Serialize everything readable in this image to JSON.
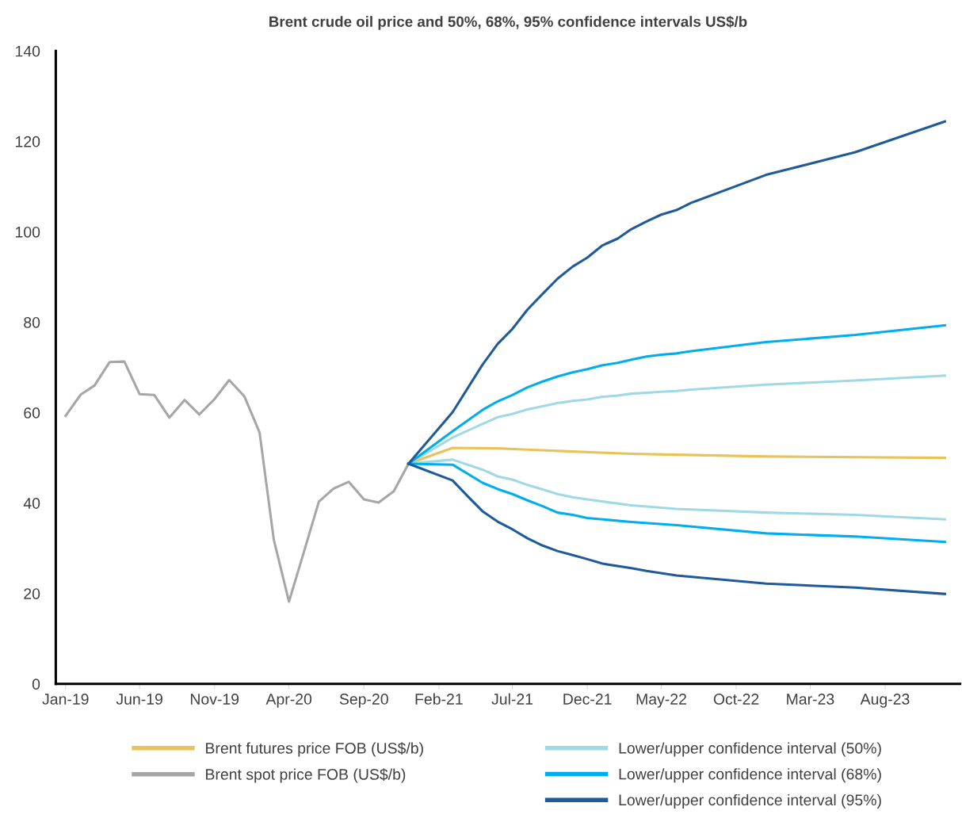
{
  "chart_data": {
    "type": "line",
    "title": "Brent crude oil price and 50%, 68%, 95% confidence intervals US$/b",
    "xlim": [
      "2018-12-12",
      "2024-01-01"
    ],
    "ylim": [
      0,
      140
    ],
    "yticks": [
      0,
      20,
      40,
      60,
      80,
      100,
      120,
      140
    ],
    "xticks": [
      {
        "value": "2019-01",
        "label": "Jan-19"
      },
      {
        "value": "2019-06",
        "label": "Jun-19"
      },
      {
        "value": "2019-11",
        "label": "Nov-19"
      },
      {
        "value": "2020-04",
        "label": "Apr-20"
      },
      {
        "value": "2020-09",
        "label": "Sep-20"
      },
      {
        "value": "2021-02",
        "label": "Feb-21"
      },
      {
        "value": "2021-07",
        "label": "Jul-21"
      },
      {
        "value": "2021-12",
        "label": "Dec-21"
      },
      {
        "value": "2022-05",
        "label": "May-22"
      },
      {
        "value": "2022-10",
        "label": "Oct-22"
      },
      {
        "value": "2023-03",
        "label": "Mar-23"
      },
      {
        "value": "2023-08",
        "label": "Aug-23"
      }
    ],
    "grid": false,
    "legend": "bottom",
    "marker": "none",
    "line_style": "solid",
    "series": [
      {
        "name": "Brent futures price FOB (US$/b)",
        "color": "#e8c35a",
        "x": [
          "2020-12",
          "2021-03",
          "2021-06",
          "2021-08",
          "2021-11",
          "2022-03",
          "2022-06",
          "2022-12",
          "2023-12"
        ],
        "values": [
          48.7,
          52.2,
          52.1,
          51.8,
          51.4,
          50.9,
          50.7,
          50.3,
          50.0
        ]
      },
      {
        "name": "Brent spot price FOB (US$/b)",
        "color": "#a6a6a6",
        "x": [
          "2019-01",
          "2019-02",
          "2019-03",
          "2019-04",
          "2019-05",
          "2019-06",
          "2019-07",
          "2019-08",
          "2019-09",
          "2019-10",
          "2019-11",
          "2019-12",
          "2020-01",
          "2020-02",
          "2020-03",
          "2020-04",
          "2020-05",
          "2020-06",
          "2020-07",
          "2020-08",
          "2020-09",
          "2020-10",
          "2020-11",
          "2020-12"
        ],
        "values": [
          59.3,
          64.0,
          66.0,
          71.2,
          71.3,
          64.1,
          63.9,
          58.9,
          62.8,
          59.6,
          63.0,
          67.2,
          63.6,
          55.6,
          31.9,
          18.2,
          29.0,
          40.3,
          43.2,
          44.7,
          40.8,
          40.1,
          42.6,
          48.7
        ]
      },
      {
        "name": "Lower/upper confidence interval (50%)",
        "color": "#9fd9e6",
        "x": [
          "2020-12",
          "2021-03",
          "2021-05",
          "2021-06",
          "2021-07",
          "2021-08",
          "2021-09",
          "2021-10",
          "2021-11",
          "2021-12",
          "2022-01",
          "2022-02",
          "2022-03",
          "2022-04",
          "2022-05",
          "2022-06",
          "2022-07",
          "2022-12",
          "2023-06",
          "2023-12"
        ],
        "values": [
          48.7,
          54.5,
          57.5,
          59.0,
          59.7,
          60.7,
          61.4,
          62.1,
          62.6,
          62.9,
          63.5,
          63.8,
          64.2,
          64.4,
          64.6,
          64.8,
          65.1,
          66.2,
          67.1,
          68.2
        ]
      },
      {
        "color": "#9fd9e6",
        "x": [
          "2020-12",
          "2021-03",
          "2021-05",
          "2021-06",
          "2021-07",
          "2021-08",
          "2021-09",
          "2021-10",
          "2021-11",
          "2021-12",
          "2022-03",
          "2022-06",
          "2022-12",
          "2023-06",
          "2023-12"
        ],
        "values": [
          48.7,
          49.6,
          47.4,
          45.9,
          45.2,
          44.0,
          43.0,
          42.0,
          41.3,
          40.8,
          39.5,
          38.7,
          37.9,
          37.4,
          36.4
        ]
      },
      {
        "name": "Lower/upper confidence interval (68%)",
        "color": "#00aeef",
        "x": [
          "2020-12",
          "2021-03",
          "2021-05",
          "2021-06",
          "2021-07",
          "2021-08",
          "2021-09",
          "2021-10",
          "2021-11",
          "2021-12",
          "2022-01",
          "2022-02",
          "2022-03",
          "2022-04",
          "2022-05",
          "2022-06",
          "2022-07",
          "2022-12",
          "2023-06",
          "2023-12"
        ],
        "values": [
          48.7,
          55.9,
          60.6,
          62.5,
          63.9,
          65.6,
          66.9,
          68.0,
          68.9,
          69.6,
          70.5,
          71.0,
          71.7,
          72.4,
          72.8,
          73.1,
          73.6,
          75.6,
          77.2,
          79.3
        ]
      },
      {
        "color": "#00aeef",
        "x": [
          "2020-12",
          "2021-03",
          "2021-05",
          "2021-06",
          "2021-07",
          "2021-08",
          "2021-09",
          "2021-10",
          "2021-11",
          "2021-12",
          "2022-03",
          "2022-06",
          "2022-12",
          "2023-06",
          "2023-12"
        ],
        "values": [
          48.7,
          48.5,
          44.5,
          43.1,
          42.0,
          40.6,
          39.3,
          37.9,
          37.4,
          36.7,
          35.8,
          35.1,
          33.3,
          32.6,
          31.4
        ]
      },
      {
        "name": "Lower/upper confidence interval (95%)",
        "color": "#1f5a9a",
        "x": [
          "2020-12",
          "2021-03",
          "2021-05",
          "2021-06",
          "2021-07",
          "2021-08",
          "2021-09",
          "2021-10",
          "2021-11",
          "2021-12",
          "2022-01",
          "2022-02",
          "2022-03",
          "2022-04",
          "2022-05",
          "2022-06",
          "2022-07",
          "2022-12",
          "2023-06",
          "2023-12"
        ],
        "values": [
          48.7,
          60.1,
          70.6,
          75.2,
          78.5,
          82.8,
          86.3,
          89.6,
          92.3,
          94.3,
          97.0,
          98.5,
          100.6,
          102.3,
          103.8,
          104.8,
          106.4,
          112.6,
          117.6,
          124.4
        ]
      },
      {
        "color": "#1f5a9a",
        "x": [
          "2020-12",
          "2021-03",
          "2021-04",
          "2021-05",
          "2021-06",
          "2021-07",
          "2021-08",
          "2021-09",
          "2021-10",
          "2021-11",
          "2021-12",
          "2022-01",
          "2022-03",
          "2022-04",
          "2022-06",
          "2022-12",
          "2023-06",
          "2023-12"
        ],
        "values": [
          48.7,
          45.0,
          41.5,
          38.2,
          35.9,
          34.2,
          32.2,
          30.6,
          29.4,
          28.5,
          27.6,
          26.6,
          25.6,
          25.0,
          24.0,
          22.2,
          21.3,
          19.9
        ]
      }
    ]
  }
}
